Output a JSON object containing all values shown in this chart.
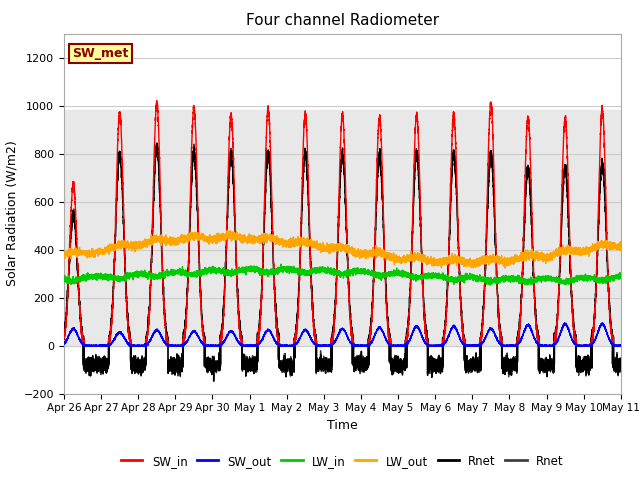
{
  "title": "Four channel Radiometer",
  "xlabel": "Time",
  "ylabel": "Solar Radiation (W/m2)",
  "ylim": [
    -200,
    1300
  ],
  "xlim": [
    0,
    15
  ],
  "tick_labels": [
    "Apr 26",
    "Apr 27",
    "Apr 28",
    "Apr 29",
    "Apr 30",
    "May 1",
    "May 2",
    "May 3",
    "May 4",
    "May 5",
    "May 6",
    "May 7",
    "May 8",
    "May 9",
    "May 10",
    "May 11"
  ],
  "tick_positions": [
    0,
    1,
    2,
    3,
    4,
    5,
    6,
    7,
    8,
    9,
    10,
    11,
    12,
    13,
    14,
    15
  ],
  "annotation_text": "SW_met",
  "annotation_bg": "#FFFF99",
  "annotation_border": "#8B0000",
  "colors": {
    "SW_in": "#FF0000",
    "SW_out": "#0000FF",
    "LW_in": "#00CC00",
    "LW_out": "#FFA500",
    "Rnet_black": "#000000",
    "Rnet_dark": "#404040"
  },
  "legend_labels": [
    "SW_in",
    "SW_out",
    "LW_in",
    "LW_out",
    "Rnet",
    "Rnet"
  ],
  "legend_colors": [
    "#FF0000",
    "#0000FF",
    "#00CC00",
    "#FFA500",
    "#000000",
    "#404040"
  ],
  "grid_color": "#CCCCCC",
  "yticks": [
    -200,
    0,
    200,
    400,
    600,
    800,
    1000,
    1200
  ],
  "gray_band_ymin": 0,
  "gray_band_ymax": 980,
  "gray_band_color": "#E8E8E8"
}
